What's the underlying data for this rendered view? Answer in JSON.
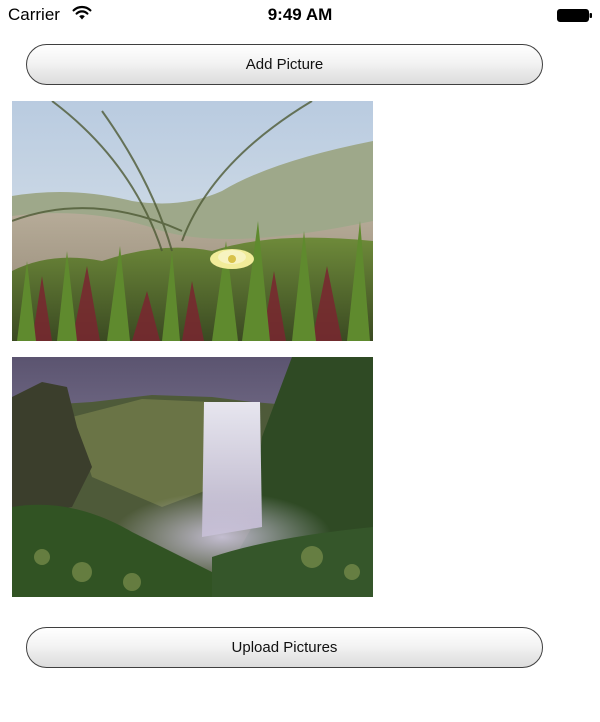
{
  "status_bar": {
    "carrier": "Carrier",
    "time": "9:49 AM",
    "wifi_icon": "wifi-icon",
    "battery_icon": "battery-icon"
  },
  "buttons": {
    "add_picture": "Add Picture",
    "upload_pictures": "Upload Pictures"
  },
  "pictures": [
    {
      "name": "flower-photo"
    },
    {
      "name": "waterfall-photo"
    }
  ],
  "colors": {
    "button_border": "#3f3f3f",
    "button_gradient_top": "#ffffff",
    "button_gradient_bottom": "#dcdcdc",
    "background": "#ffffff"
  }
}
